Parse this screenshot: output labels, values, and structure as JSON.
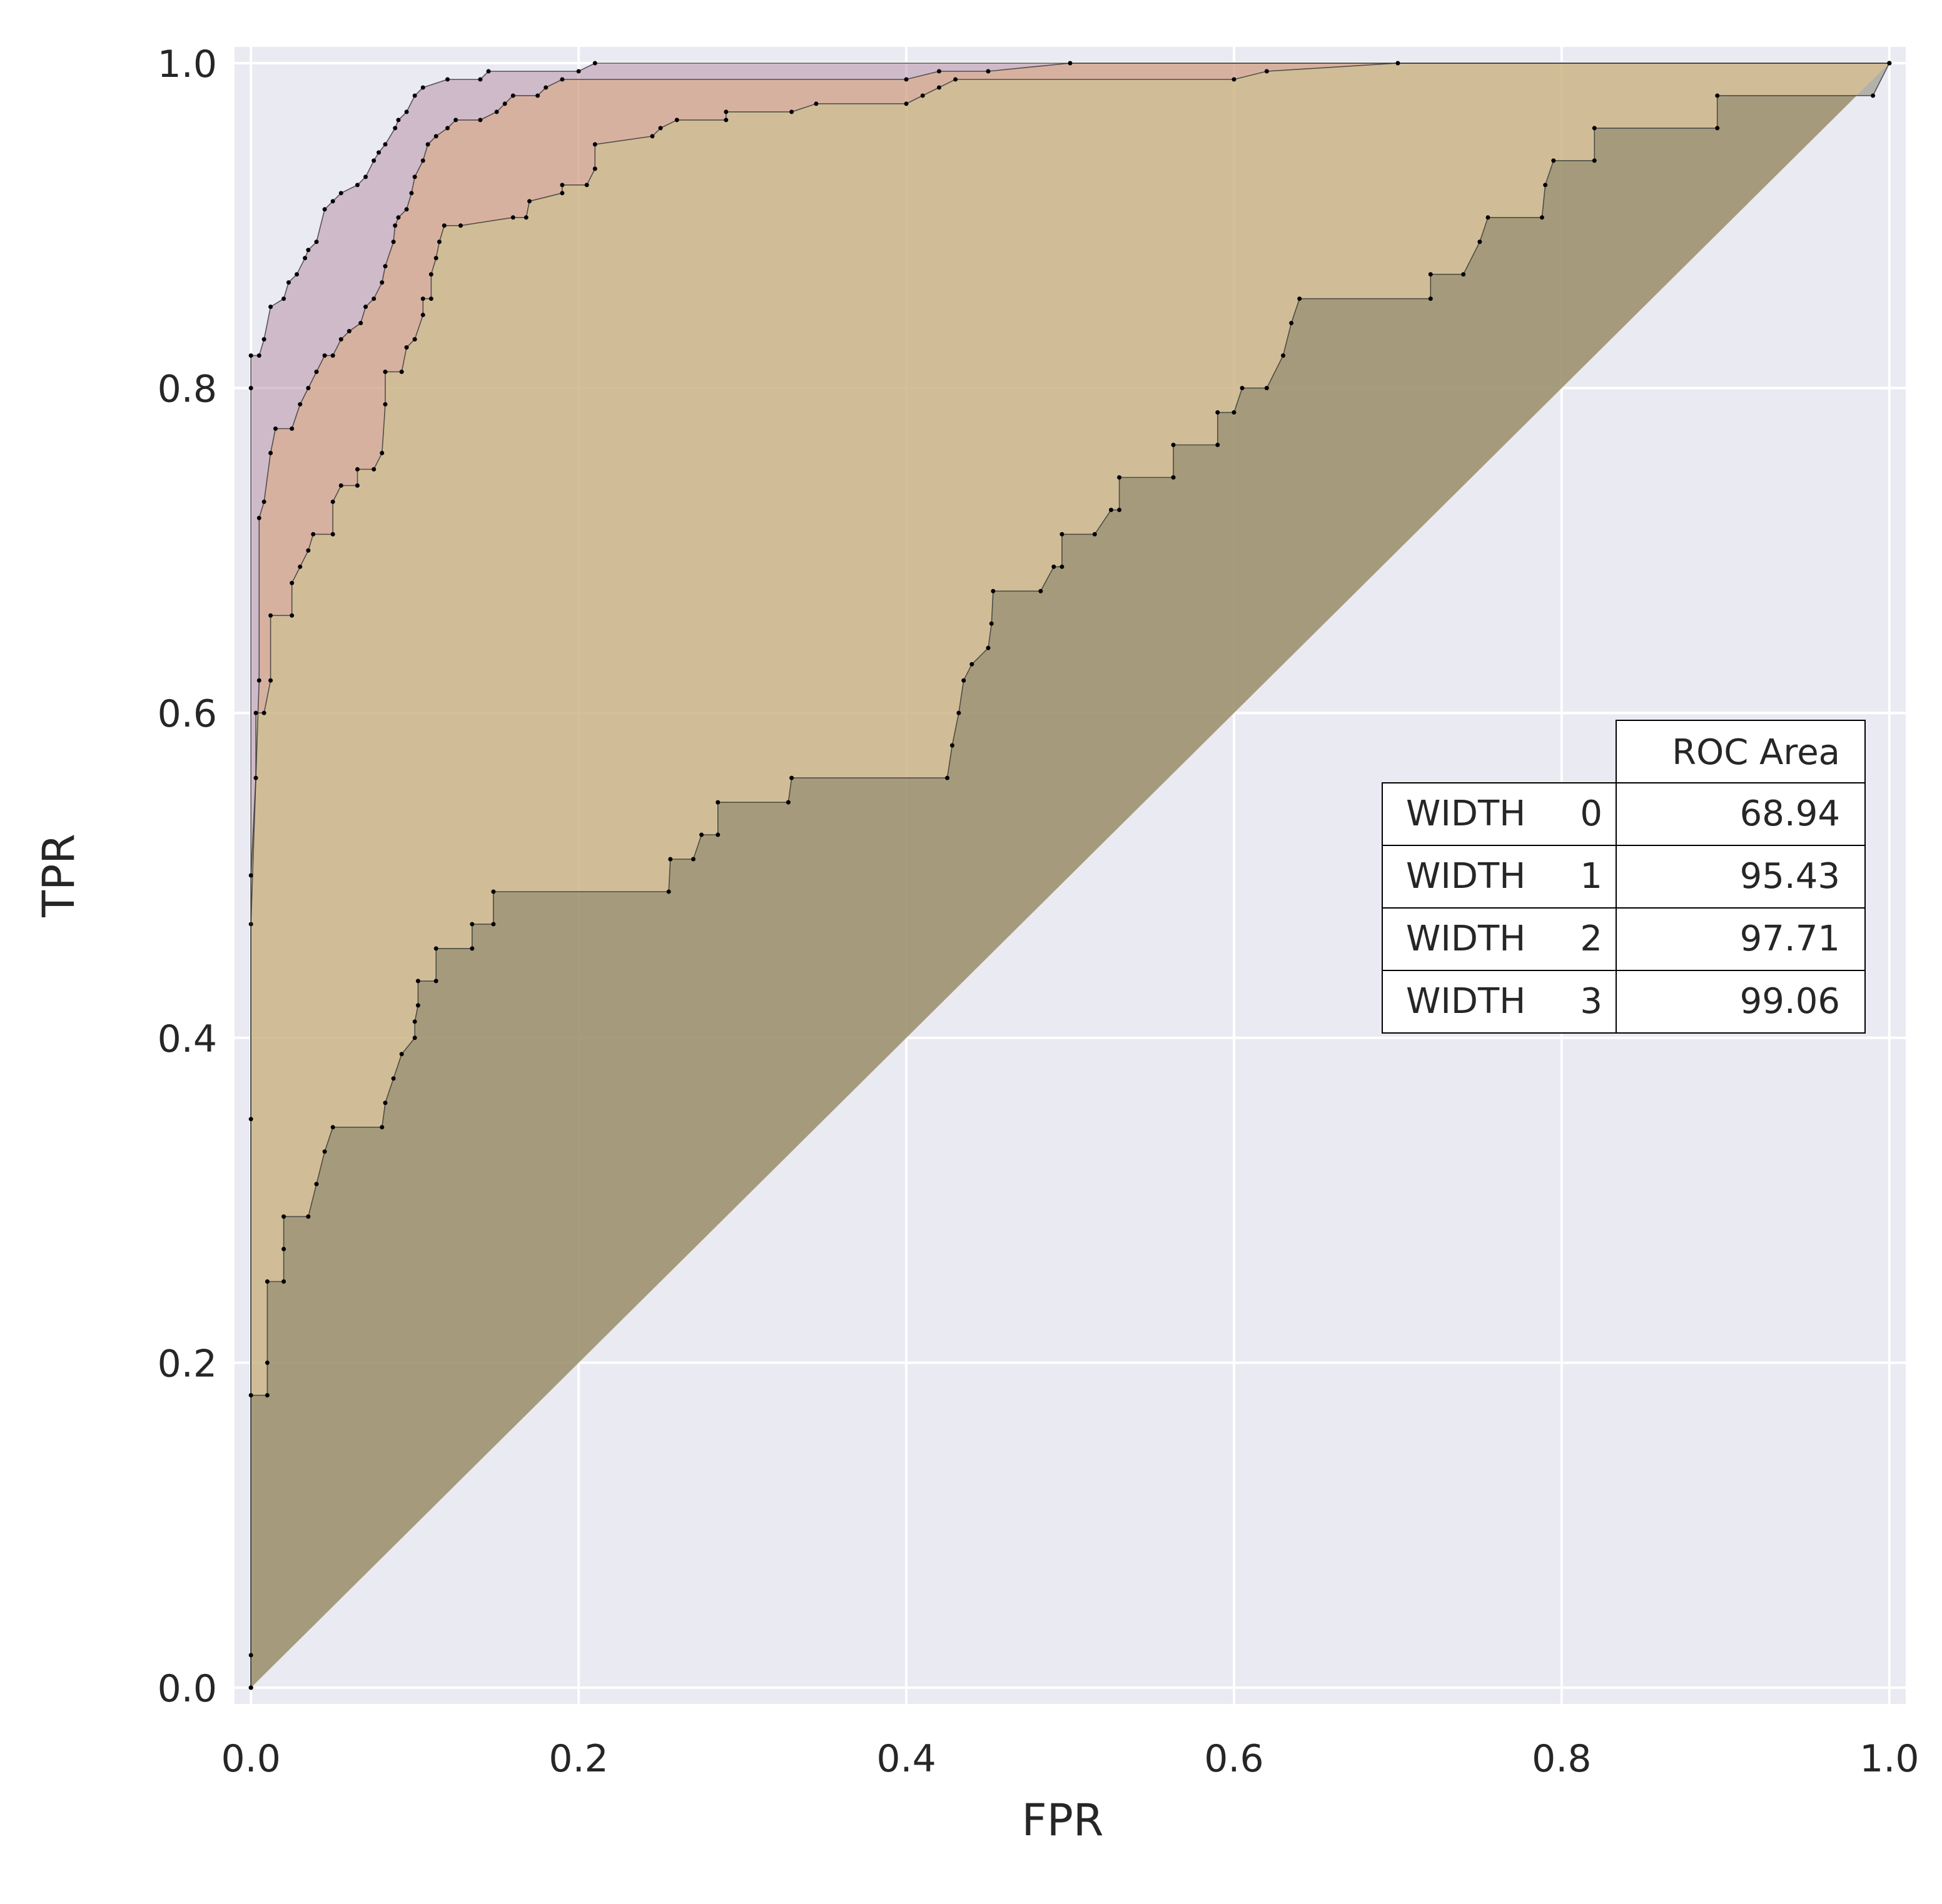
{
  "chart_data": {
    "type": "area",
    "xlabel": "FPR",
    "ylabel": "TPR",
    "xlim": [
      -0.01,
      1.01
    ],
    "ylim": [
      -0.01,
      1.01
    ],
    "x_ticks": [
      "0.0",
      "0.2",
      "0.4",
      "0.6",
      "0.8",
      "1.0"
    ],
    "y_ticks": [
      "0.0",
      "0.2",
      "0.4",
      "0.6",
      "0.8",
      "1.0"
    ],
    "grid": true,
    "legend_placement": "center-right table",
    "table": {
      "header": "ROC Area",
      "rows": [
        {
          "name": "WIDTH",
          "index": "0",
          "value": "68.94"
        },
        {
          "name": "WIDTH",
          "index": "1",
          "value": "95.43"
        },
        {
          "name": "WIDTH",
          "index": "2",
          "value": "97.71"
        },
        {
          "name": "WIDTH",
          "index": "3",
          "value": "99.06"
        }
      ]
    },
    "series": [
      {
        "color": "#7a7a62",
        "points": [
          [
            0,
            0
          ],
          [
            0,
            0.02
          ],
          [
            0,
            0.18
          ],
          [
            0.01,
            0.18
          ],
          [
            0.01,
            0.2
          ],
          [
            0.01,
            0.25
          ],
          [
            0.02,
            0.25
          ],
          [
            0.02,
            0.27
          ],
          [
            0.02,
            0.29
          ],
          [
            0.035,
            0.29
          ],
          [
            0.04,
            0.31
          ],
          [
            0.045,
            0.33
          ],
          [
            0.05,
            0.345
          ],
          [
            0.08,
            0.345
          ],
          [
            0.082,
            0.36
          ],
          [
            0.087,
            0.375
          ],
          [
            0.092,
            0.39
          ],
          [
            0.1,
            0.4
          ],
          [
            0.1,
            0.41
          ],
          [
            0.102,
            0.42
          ],
          [
            0.102,
            0.435
          ],
          [
            0.113,
            0.435
          ],
          [
            0.113,
            0.455
          ],
          [
            0.135,
            0.455
          ],
          [
            0.135,
            0.47
          ],
          [
            0.148,
            0.47
          ],
          [
            0.148,
            0.49
          ],
          [
            0.255,
            0.49
          ],
          [
            0.256,
            0.51
          ],
          [
            0.27,
            0.51
          ],
          [
            0.275,
            0.525
          ],
          [
            0.285,
            0.525
          ],
          [
            0.285,
            0.545
          ],
          [
            0.328,
            0.545
          ],
          [
            0.33,
            0.56
          ],
          [
            0.425,
            0.56
          ],
          [
            0.428,
            0.58
          ],
          [
            0.432,
            0.6
          ],
          [
            0.435,
            0.62
          ],
          [
            0.44,
            0.63
          ],
          [
            0.45,
            0.64
          ],
          [
            0.452,
            0.655
          ],
          [
            0.453,
            0.675
          ],
          [
            0.482,
            0.675
          ],
          [
            0.49,
            0.69
          ],
          [
            0.495,
            0.69
          ],
          [
            0.495,
            0.71
          ],
          [
            0.515,
            0.71
          ],
          [
            0.525,
            0.725
          ],
          [
            0.53,
            0.725
          ],
          [
            0.53,
            0.745
          ],
          [
            0.563,
            0.745
          ],
          [
            0.563,
            0.765
          ],
          [
            0.59,
            0.765
          ],
          [
            0.59,
            0.785
          ],
          [
            0.6,
            0.785
          ],
          [
            0.605,
            0.8
          ],
          [
            0.62,
            0.8
          ],
          [
            0.63,
            0.82
          ],
          [
            0.635,
            0.84
          ],
          [
            0.64,
            0.855
          ],
          [
            0.72,
            0.855
          ],
          [
            0.72,
            0.87
          ],
          [
            0.74,
            0.87
          ],
          [
            0.75,
            0.89
          ],
          [
            0.755,
            0.905
          ],
          [
            0.788,
            0.905
          ],
          [
            0.79,
            0.925
          ],
          [
            0.795,
            0.94
          ],
          [
            0.82,
            0.94
          ],
          [
            0.82,
            0.96
          ],
          [
            0.895,
            0.96
          ],
          [
            0.895,
            0.98
          ],
          [
            0.99,
            0.98
          ],
          [
            1,
            1
          ]
        ]
      },
      {
        "color": "#c9c98e",
        "points": [
          [
            0,
            0
          ],
          [
            0,
            0.35
          ],
          [
            0,
            0.5
          ],
          [
            0.003,
            0.56
          ],
          [
            0.003,
            0.6
          ],
          [
            0.008,
            0.6
          ],
          [
            0.012,
            0.62
          ],
          [
            0.012,
            0.66
          ],
          [
            0.025,
            0.66
          ],
          [
            0.025,
            0.68
          ],
          [
            0.03,
            0.69
          ],
          [
            0.035,
            0.7
          ],
          [
            0.038,
            0.71
          ],
          [
            0.05,
            0.71
          ],
          [
            0.05,
            0.73
          ],
          [
            0.055,
            0.74
          ],
          [
            0.065,
            0.74
          ],
          [
            0.065,
            0.75
          ],
          [
            0.075,
            0.75
          ],
          [
            0.08,
            0.76
          ],
          [
            0.082,
            0.79
          ],
          [
            0.082,
            0.81
          ],
          [
            0.092,
            0.81
          ],
          [
            0.095,
            0.825
          ],
          [
            0.1,
            0.83
          ],
          [
            0.105,
            0.845
          ],
          [
            0.105,
            0.855
          ],
          [
            0.11,
            0.855
          ],
          [
            0.11,
            0.87
          ],
          [
            0.113,
            0.88
          ],
          [
            0.115,
            0.89
          ],
          [
            0.118,
            0.9
          ],
          [
            0.128,
            0.9
          ],
          [
            0.16,
            0.905
          ],
          [
            0.168,
            0.905
          ],
          [
            0.17,
            0.915
          ],
          [
            0.19,
            0.92
          ],
          [
            0.19,
            0.925
          ],
          [
            0.205,
            0.925
          ],
          [
            0.21,
            0.935
          ],
          [
            0.21,
            0.95
          ],
          [
            0.245,
            0.955
          ],
          [
            0.25,
            0.96
          ],
          [
            0.26,
            0.965
          ],
          [
            0.29,
            0.965
          ],
          [
            0.29,
            0.97
          ],
          [
            0.33,
            0.97
          ],
          [
            0.345,
            0.975
          ],
          [
            0.4,
            0.975
          ],
          [
            0.41,
            0.98
          ],
          [
            0.42,
            0.985
          ],
          [
            0.43,
            0.99
          ],
          [
            0.6,
            0.99
          ],
          [
            0.62,
            0.995
          ],
          [
            0.7,
            1
          ],
          [
            1,
            1
          ]
        ]
      },
      {
        "color": "#e0a878",
        "points": [
          [
            0,
            0
          ],
          [
            0,
            0.47
          ],
          [
            0.005,
            0.62
          ],
          [
            0.005,
            0.72
          ],
          [
            0.008,
            0.73
          ],
          [
            0.012,
            0.76
          ],
          [
            0.015,
            0.775
          ],
          [
            0.025,
            0.775
          ],
          [
            0.03,
            0.79
          ],
          [
            0.035,
            0.8
          ],
          [
            0.04,
            0.81
          ],
          [
            0.045,
            0.82
          ],
          [
            0.05,
            0.82
          ],
          [
            0.055,
            0.83
          ],
          [
            0.06,
            0.835
          ],
          [
            0.067,
            0.84
          ],
          [
            0.07,
            0.85
          ],
          [
            0.075,
            0.855
          ],
          [
            0.08,
            0.865
          ],
          [
            0.082,
            0.875
          ],
          [
            0.087,
            0.89
          ],
          [
            0.088,
            0.9
          ],
          [
            0.09,
            0.905
          ],
          [
            0.095,
            0.91
          ],
          [
            0.098,
            0.92
          ],
          [
            0.1,
            0.93
          ],
          [
            0.105,
            0.94
          ],
          [
            0.108,
            0.95
          ],
          [
            0.113,
            0.955
          ],
          [
            0.12,
            0.96
          ],
          [
            0.125,
            0.965
          ],
          [
            0.14,
            0.965
          ],
          [
            0.15,
            0.97
          ],
          [
            0.155,
            0.975
          ],
          [
            0.16,
            0.98
          ],
          [
            0.175,
            0.98
          ],
          [
            0.18,
            0.985
          ],
          [
            0.19,
            0.99
          ],
          [
            0.4,
            0.99
          ],
          [
            0.42,
            0.995
          ],
          [
            0.45,
            0.995
          ],
          [
            0.5,
            1
          ],
          [
            1,
            1
          ]
        ]
      },
      {
        "color": "#b48aa0",
        "points": [
          [
            0,
            0
          ],
          [
            0,
            0.8
          ],
          [
            0,
            0.82
          ],
          [
            0.005,
            0.82
          ],
          [
            0.008,
            0.83
          ],
          [
            0.012,
            0.85
          ],
          [
            0.02,
            0.855
          ],
          [
            0.023,
            0.865
          ],
          [
            0.028,
            0.87
          ],
          [
            0.033,
            0.88
          ],
          [
            0.035,
            0.885
          ],
          [
            0.04,
            0.89
          ],
          [
            0.045,
            0.91
          ],
          [
            0.05,
            0.915
          ],
          [
            0.055,
            0.92
          ],
          [
            0.065,
            0.925
          ],
          [
            0.07,
            0.93
          ],
          [
            0.075,
            0.94
          ],
          [
            0.078,
            0.945
          ],
          [
            0.082,
            0.95
          ],
          [
            0.088,
            0.96
          ],
          [
            0.09,
            0.965
          ],
          [
            0.095,
            0.97
          ],
          [
            0.1,
            0.98
          ],
          [
            0.105,
            0.985
          ],
          [
            0.12,
            0.99
          ],
          [
            0.14,
            0.99
          ],
          [
            0.145,
            0.995
          ],
          [
            0.2,
            0.995
          ],
          [
            0.21,
            1
          ],
          [
            1,
            1
          ]
        ]
      }
    ]
  }
}
